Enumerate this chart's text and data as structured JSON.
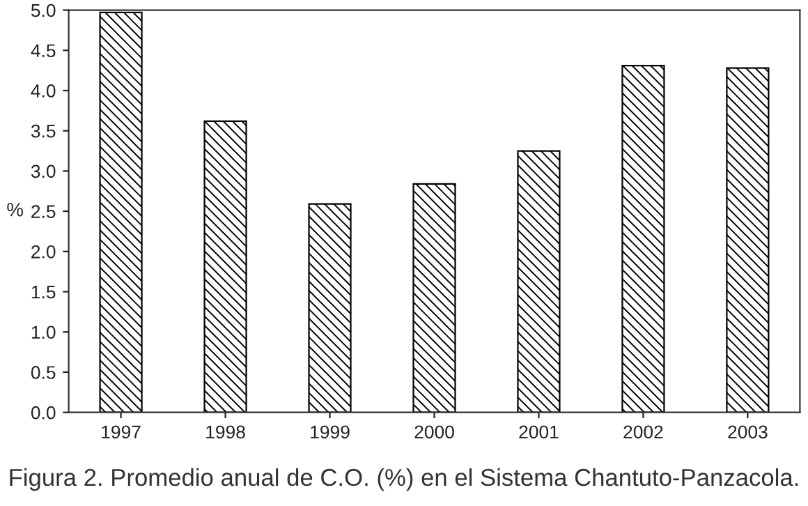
{
  "chart_data": {
    "type": "bar",
    "categories": [
      "1997",
      "1998",
      "1999",
      "2000",
      "2001",
      "2002",
      "2003"
    ],
    "values": [
      4.97,
      3.62,
      2.59,
      2.84,
      3.25,
      4.31,
      4.28
    ],
    "color": "#000000",
    "ylabel": "%",
    "ylim": [
      0,
      5
    ],
    "yticks": [
      {
        "value": 0,
        "label": "0.0"
      },
      {
        "value": 0.5,
        "label": "0.5"
      },
      {
        "value": 1,
        "label": "1.0"
      },
      {
        "value": 1.5,
        "label": "1.5"
      },
      {
        "value": 2,
        "label": "2.0"
      },
      {
        "value": 2.5,
        "label": "2.5"
      },
      {
        "value": 3,
        "label": "3.0"
      },
      {
        "value": 3.5,
        "label": "3.5"
      },
      {
        "value": 4,
        "label": "4.0"
      },
      {
        "value": 4.5,
        "label": "4.5"
      },
      {
        "value": 5,
        "label": "5.0"
      }
    ],
    "annotations": [
      "Figura 2. Promedio anual de C.O. (%) en el Sistema Chantuto-Panzacola."
    ]
  }
}
